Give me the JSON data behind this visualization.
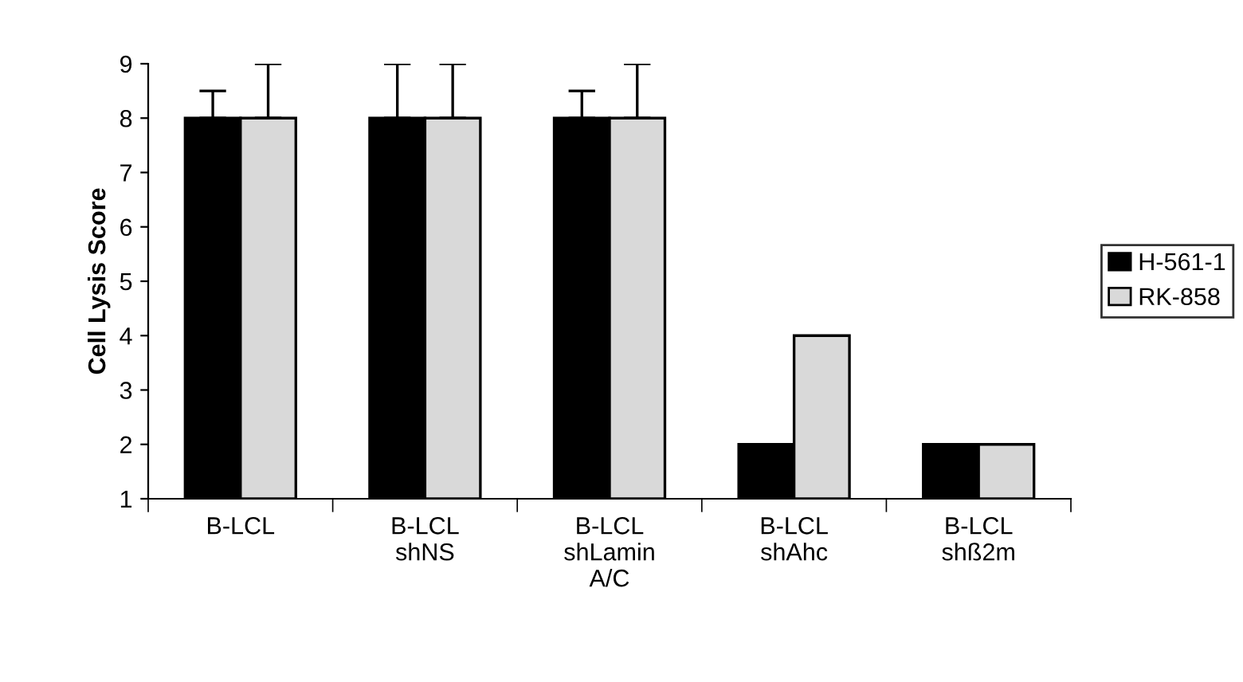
{
  "chart_data": {
    "type": "bar",
    "ylabel": "Cell Lysis Score",
    "categories": [
      "B-LCL",
      "B-LCL\nshNS",
      "B-LCL\nshLamin\nA/C",
      "B-LCL\nshAhc",
      "B-LCL\nshß2m"
    ],
    "series": [
      {
        "name": "H-561-1",
        "color": "#000000",
        "values": [
          8,
          8,
          8,
          2,
          2
        ],
        "errors": [
          [
            8,
            8.5
          ],
          [
            8,
            9
          ],
          [
            8,
            8.5
          ],
          null,
          null
        ]
      },
      {
        "name": "RK-858",
        "color": "#d9d9d9",
        "values": [
          8,
          8,
          8,
          4,
          2
        ],
        "errors": [
          [
            8,
            9
          ],
          [
            8,
            9
          ],
          [
            8,
            9
          ],
          null,
          null
        ]
      }
    ],
    "ylim": [
      1,
      9
    ],
    "yticks": [
      1,
      2,
      3,
      4,
      5,
      6,
      7,
      8,
      9
    ],
    "grid": false,
    "legend": "right"
  }
}
